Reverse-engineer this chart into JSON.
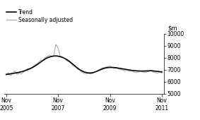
{
  "ylim": [
    5000,
    10000
  ],
  "yticks": [
    5000,
    6000,
    7000,
    8000,
    9000,
    10000
  ],
  "xtick_positions": [
    0,
    24,
    48,
    72
  ],
  "xtick_labels": [
    "Nov\n2005",
    "Nov\n2007",
    "Nov\n2009",
    "Nov\n2011"
  ],
  "trend_color": "#000000",
  "seas_color": "#aaaaaa",
  "trend_linewidth": 1.2,
  "seas_linewidth": 0.8,
  "legend_entries": [
    "Trend",
    "Seasonally adjusted"
  ],
  "background_color": "#ffffff",
  "n_months": 73,
  "trend_values": [
    6600,
    6620,
    6650,
    6680,
    6710,
    6740,
    6780,
    6820,
    6870,
    6930,
    7000,
    7080,
    7160,
    7260,
    7380,
    7500,
    7630,
    7760,
    7880,
    7980,
    8050,
    8100,
    8130,
    8140,
    8120,
    8080,
    8020,
    7940,
    7840,
    7720,
    7580,
    7430,
    7280,
    7130,
    7000,
    6890,
    6810,
    6760,
    6720,
    6720,
    6740,
    6790,
    6860,
    6940,
    7020,
    7090,
    7140,
    7170,
    7180,
    7180,
    7170,
    7150,
    7120,
    7090,
    7060,
    7030,
    7000,
    6970,
    6940,
    6920,
    6900,
    6890,
    6880,
    6880,
    6880,
    6890,
    6900,
    6910,
    6890,
    6870,
    6850,
    6830,
    6810
  ],
  "seas_values": [
    6550,
    6750,
    6500,
    6680,
    6900,
    6600,
    6700,
    6650,
    6800,
    6950,
    7100,
    7000,
    7200,
    7350,
    7450,
    7600,
    7800,
    7750,
    8000,
    8100,
    8200,
    8100,
    8150,
    9100,
    8800,
    8100,
    8050,
    7900,
    7750,
    7650,
    7500,
    7300,
    7200,
    7050,
    6950,
    6800,
    6700,
    6650,
    6700,
    6650,
    6700,
    6800,
    6900,
    7000,
    7100,
    7150,
    7200,
    7250,
    7300,
    7200,
    7100,
    7150,
    7050,
    7000,
    6950,
    6900,
    6950,
    6850,
    6900,
    6800,
    6750,
    6800,
    6900,
    6800,
    6750,
    6800,
    6850,
    6950,
    6800,
    6750,
    6700,
    6800,
    6700
  ],
  "legend_fontsize": 5.5,
  "tick_fontsize": 5.5,
  "ylabel_fontsize": 6.0
}
